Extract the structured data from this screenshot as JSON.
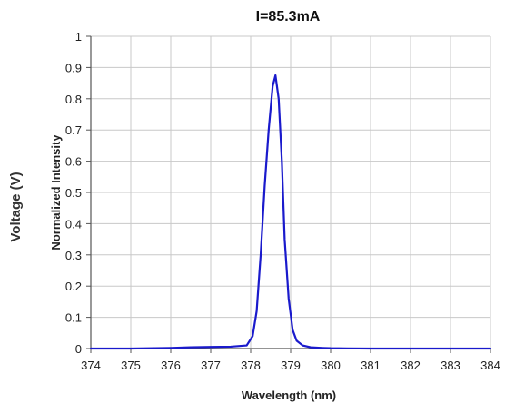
{
  "chart_data": {
    "type": "line",
    "title": "I=85.3mA",
    "xlabel": "Wavelength (nm)",
    "ylabel": "Normalized Intensity",
    "outer_ylabel": "Voltage (V)",
    "xlim": [
      374,
      384
    ],
    "ylim": [
      0,
      1
    ],
    "x_ticks": [
      "374",
      "375",
      "376",
      "377",
      "378",
      "379",
      "380",
      "381",
      "382",
      "383",
      "384"
    ],
    "y_ticks": [
      "0",
      "0.1",
      "0.2",
      "0.3",
      "0.4",
      "0.5",
      "0.6",
      "0.7",
      "0.8",
      "0.9",
      "1"
    ],
    "grid": true,
    "colors": {
      "line": "#1a1acc",
      "grid": "#c8c8c8",
      "axis": "#555555"
    },
    "series": [
      {
        "x": [
          374.0,
          375.0,
          376.0,
          376.5,
          377.0,
          377.5,
          377.9,
          378.05,
          378.15,
          378.25,
          378.35,
          378.45,
          378.55,
          378.62,
          378.7,
          378.78,
          378.85,
          378.95,
          379.05,
          379.15,
          379.3,
          379.5,
          379.8,
          380.0,
          381.0,
          382.0,
          383.0,
          384.0
        ],
        "y": [
          0.0,
          0.0,
          0.002,
          0.004,
          0.005,
          0.006,
          0.01,
          0.04,
          0.12,
          0.3,
          0.52,
          0.7,
          0.84,
          0.875,
          0.8,
          0.6,
          0.35,
          0.16,
          0.06,
          0.025,
          0.01,
          0.004,
          0.002,
          0.001,
          0.0,
          0.0,
          0.0,
          0.0
        ]
      }
    ]
  }
}
